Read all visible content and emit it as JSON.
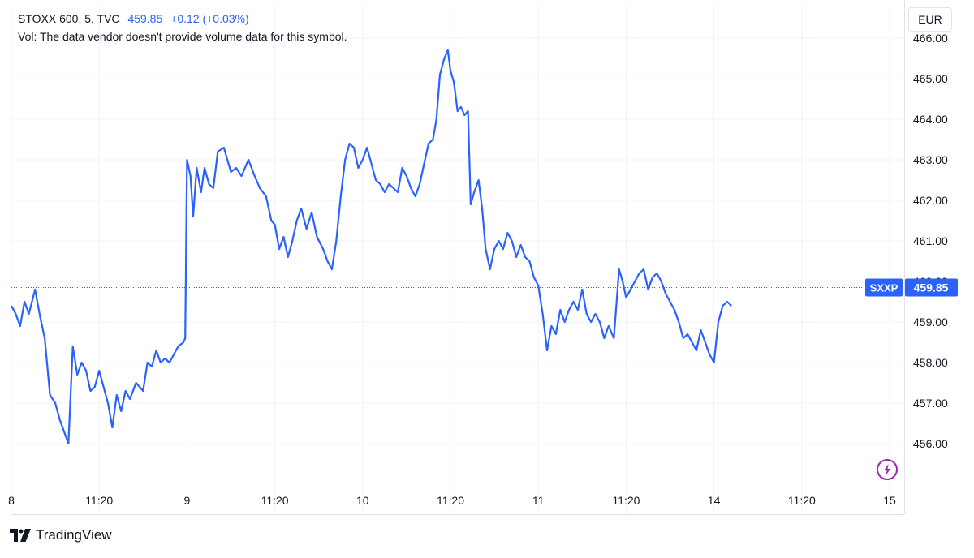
{
  "legend": {
    "symbol_line": "STOXX 600, 5, TVC",
    "last": "459.85",
    "change": "+0.12 (+0.03%)",
    "volume_note": "Vol: The data vendor doesn't provide volume data for this symbol."
  },
  "currency": "EUR",
  "price_tag": {
    "ticker": "SXXP",
    "value": "459.85"
  },
  "brand": {
    "name": "TradingView"
  },
  "colors": {
    "line": "#2962ff",
    "grid": "#f0f3fa",
    "text": "#131722",
    "bolt": "#9c27b0"
  },
  "chart_data": {
    "type": "line",
    "title": "STOXX 600, 5, TVC",
    "xlabel": "",
    "ylabel": "",
    "ylim": [
      455.2,
      466.2
    ],
    "yticks": [
      "456.00",
      "457.00",
      "458.00",
      "459.00",
      "460.00",
      "461.00",
      "462.00",
      "463.00",
      "464.00",
      "465.00",
      "466.00"
    ],
    "xticks": [
      {
        "label": "8",
        "x": 0
      },
      {
        "label": "11:20",
        "x": 1
      },
      {
        "label": "9",
        "x": 2
      },
      {
        "label": "11:20",
        "x": 3
      },
      {
        "label": "10",
        "x": 4
      },
      {
        "label": "11:20",
        "x": 5
      },
      {
        "label": "11",
        "x": 6
      },
      {
        "label": "11:20",
        "x": 7
      },
      {
        "label": "14",
        "x": 8
      },
      {
        "label": "11:20",
        "x": 9
      },
      {
        "label": "15",
        "x": 10
      }
    ],
    "last_value": 459.85,
    "grid": true,
    "series": [
      {
        "points": [
          [
            0.0,
            459.4
          ],
          [
            0.05,
            459.2
          ],
          [
            0.1,
            458.9
          ],
          [
            0.15,
            459.5
          ],
          [
            0.2,
            459.2
          ],
          [
            0.27,
            459.8
          ],
          [
            0.33,
            459.1
          ],
          [
            0.38,
            458.6
          ],
          [
            0.44,
            457.2
          ],
          [
            0.5,
            457.0
          ],
          [
            0.55,
            456.6
          ],
          [
            0.6,
            456.3
          ],
          [
            0.65,
            456.0
          ],
          [
            0.7,
            458.4
          ],
          [
            0.75,
            457.7
          ],
          [
            0.8,
            458.0
          ],
          [
            0.85,
            457.8
          ],
          [
            0.9,
            457.3
          ],
          [
            0.95,
            457.4
          ],
          [
            1.0,
            457.8
          ],
          [
            1.05,
            457.4
          ],
          [
            1.1,
            457.0
          ],
          [
            1.15,
            456.4
          ],
          [
            1.2,
            457.2
          ],
          [
            1.25,
            456.8
          ],
          [
            1.3,
            457.3
          ],
          [
            1.35,
            457.1
          ],
          [
            1.42,
            457.5
          ],
          [
            1.5,
            457.3
          ],
          [
            1.55,
            458.0
          ],
          [
            1.6,
            457.9
          ],
          [
            1.65,
            458.3
          ],
          [
            1.7,
            458.0
          ],
          [
            1.75,
            458.1
          ],
          [
            1.8,
            458.0
          ],
          [
            1.85,
            458.2
          ],
          [
            1.9,
            458.4
          ],
          [
            1.96,
            458.5
          ],
          [
            1.98,
            458.6
          ],
          [
            2.0,
            463.0
          ],
          [
            2.04,
            462.6
          ],
          [
            2.07,
            461.6
          ],
          [
            2.11,
            462.8
          ],
          [
            2.16,
            462.2
          ],
          [
            2.2,
            462.8
          ],
          [
            2.25,
            462.4
          ],
          [
            2.3,
            462.3
          ],
          [
            2.35,
            463.2
          ],
          [
            2.42,
            463.3
          ],
          [
            2.5,
            462.7
          ],
          [
            2.56,
            462.8
          ],
          [
            2.62,
            462.6
          ],
          [
            2.7,
            463.0
          ],
          [
            2.77,
            462.6
          ],
          [
            2.83,
            462.3
          ],
          [
            2.9,
            462.1
          ],
          [
            2.96,
            461.5
          ],
          [
            3.0,
            461.4
          ],
          [
            3.05,
            460.8
          ],
          [
            3.1,
            461.1
          ],
          [
            3.15,
            460.6
          ],
          [
            3.2,
            461.0
          ],
          [
            3.25,
            461.5
          ],
          [
            3.3,
            461.8
          ],
          [
            3.36,
            461.3
          ],
          [
            3.42,
            461.7
          ],
          [
            3.48,
            461.1
          ],
          [
            3.55,
            460.8
          ],
          [
            3.6,
            460.5
          ],
          [
            3.65,
            460.3
          ],
          [
            3.7,
            461.0
          ],
          [
            3.75,
            462.1
          ],
          [
            3.8,
            463.0
          ],
          [
            3.85,
            463.4
          ],
          [
            3.9,
            463.3
          ],
          [
            3.95,
            462.8
          ],
          [
            4.0,
            463.0
          ],
          [
            4.05,
            463.3
          ],
          [
            4.1,
            462.9
          ],
          [
            4.15,
            462.5
          ],
          [
            4.2,
            462.4
          ],
          [
            4.25,
            462.2
          ],
          [
            4.3,
            462.4
          ],
          [
            4.35,
            462.3
          ],
          [
            4.4,
            462.2
          ],
          [
            4.45,
            462.8
          ],
          [
            4.5,
            462.6
          ],
          [
            4.55,
            462.3
          ],
          [
            4.6,
            462.1
          ],
          [
            4.65,
            462.4
          ],
          [
            4.7,
            462.9
          ],
          [
            4.75,
            463.4
          ],
          [
            4.8,
            463.5
          ],
          [
            4.84,
            464.0
          ],
          [
            4.88,
            465.1
          ],
          [
            4.93,
            465.5
          ],
          [
            4.97,
            465.7
          ],
          [
            5.0,
            465.2
          ],
          [
            5.04,
            464.9
          ],
          [
            5.08,
            464.2
          ],
          [
            5.12,
            464.3
          ],
          [
            5.16,
            464.1
          ],
          [
            5.2,
            464.2
          ],
          [
            5.23,
            461.9
          ],
          [
            5.27,
            462.2
          ],
          [
            5.32,
            462.5
          ],
          [
            5.36,
            461.8
          ],
          [
            5.4,
            460.8
          ],
          [
            5.45,
            460.3
          ],
          [
            5.5,
            460.8
          ],
          [
            5.55,
            461.0
          ],
          [
            5.6,
            460.8
          ],
          [
            5.65,
            461.2
          ],
          [
            5.7,
            461.0
          ],
          [
            5.75,
            460.6
          ],
          [
            5.8,
            460.9
          ],
          [
            5.85,
            460.6
          ],
          [
            5.9,
            460.5
          ],
          [
            5.95,
            460.1
          ],
          [
            6.0,
            459.9
          ],
          [
            6.05,
            459.2
          ],
          [
            6.1,
            458.3
          ],
          [
            6.15,
            458.9
          ],
          [
            6.2,
            458.7
          ],
          [
            6.25,
            459.3
          ],
          [
            6.3,
            459.0
          ],
          [
            6.35,
            459.3
          ],
          [
            6.4,
            459.5
          ],
          [
            6.45,
            459.3
          ],
          [
            6.5,
            459.8
          ],
          [
            6.55,
            459.2
          ],
          [
            6.6,
            459.0
          ],
          [
            6.65,
            459.2
          ],
          [
            6.7,
            459.0
          ],
          [
            6.75,
            458.6
          ],
          [
            6.8,
            458.9
          ],
          [
            6.86,
            458.6
          ],
          [
            6.92,
            460.3
          ],
          [
            6.96,
            460.0
          ],
          [
            7.0,
            459.6
          ],
          [
            7.05,
            459.8
          ],
          [
            7.1,
            460.0
          ],
          [
            7.15,
            460.2
          ],
          [
            7.2,
            460.3
          ],
          [
            7.25,
            459.8
          ],
          [
            7.3,
            460.1
          ],
          [
            7.35,
            460.2
          ],
          [
            7.4,
            460.0
          ],
          [
            7.45,
            459.7
          ],
          [
            7.5,
            459.5
          ],
          [
            7.55,
            459.3
          ],
          [
            7.6,
            459.0
          ],
          [
            7.65,
            458.6
          ],
          [
            7.7,
            458.7
          ],
          [
            7.75,
            458.5
          ],
          [
            7.8,
            458.3
          ],
          [
            7.85,
            458.8
          ],
          [
            7.9,
            458.5
          ],
          [
            7.95,
            458.2
          ],
          [
            8.0,
            458.0
          ],
          [
            8.05,
            459.0
          ],
          [
            8.1,
            459.4
          ],
          [
            8.15,
            459.5
          ],
          [
            8.2,
            459.4
          ]
        ]
      }
    ]
  }
}
